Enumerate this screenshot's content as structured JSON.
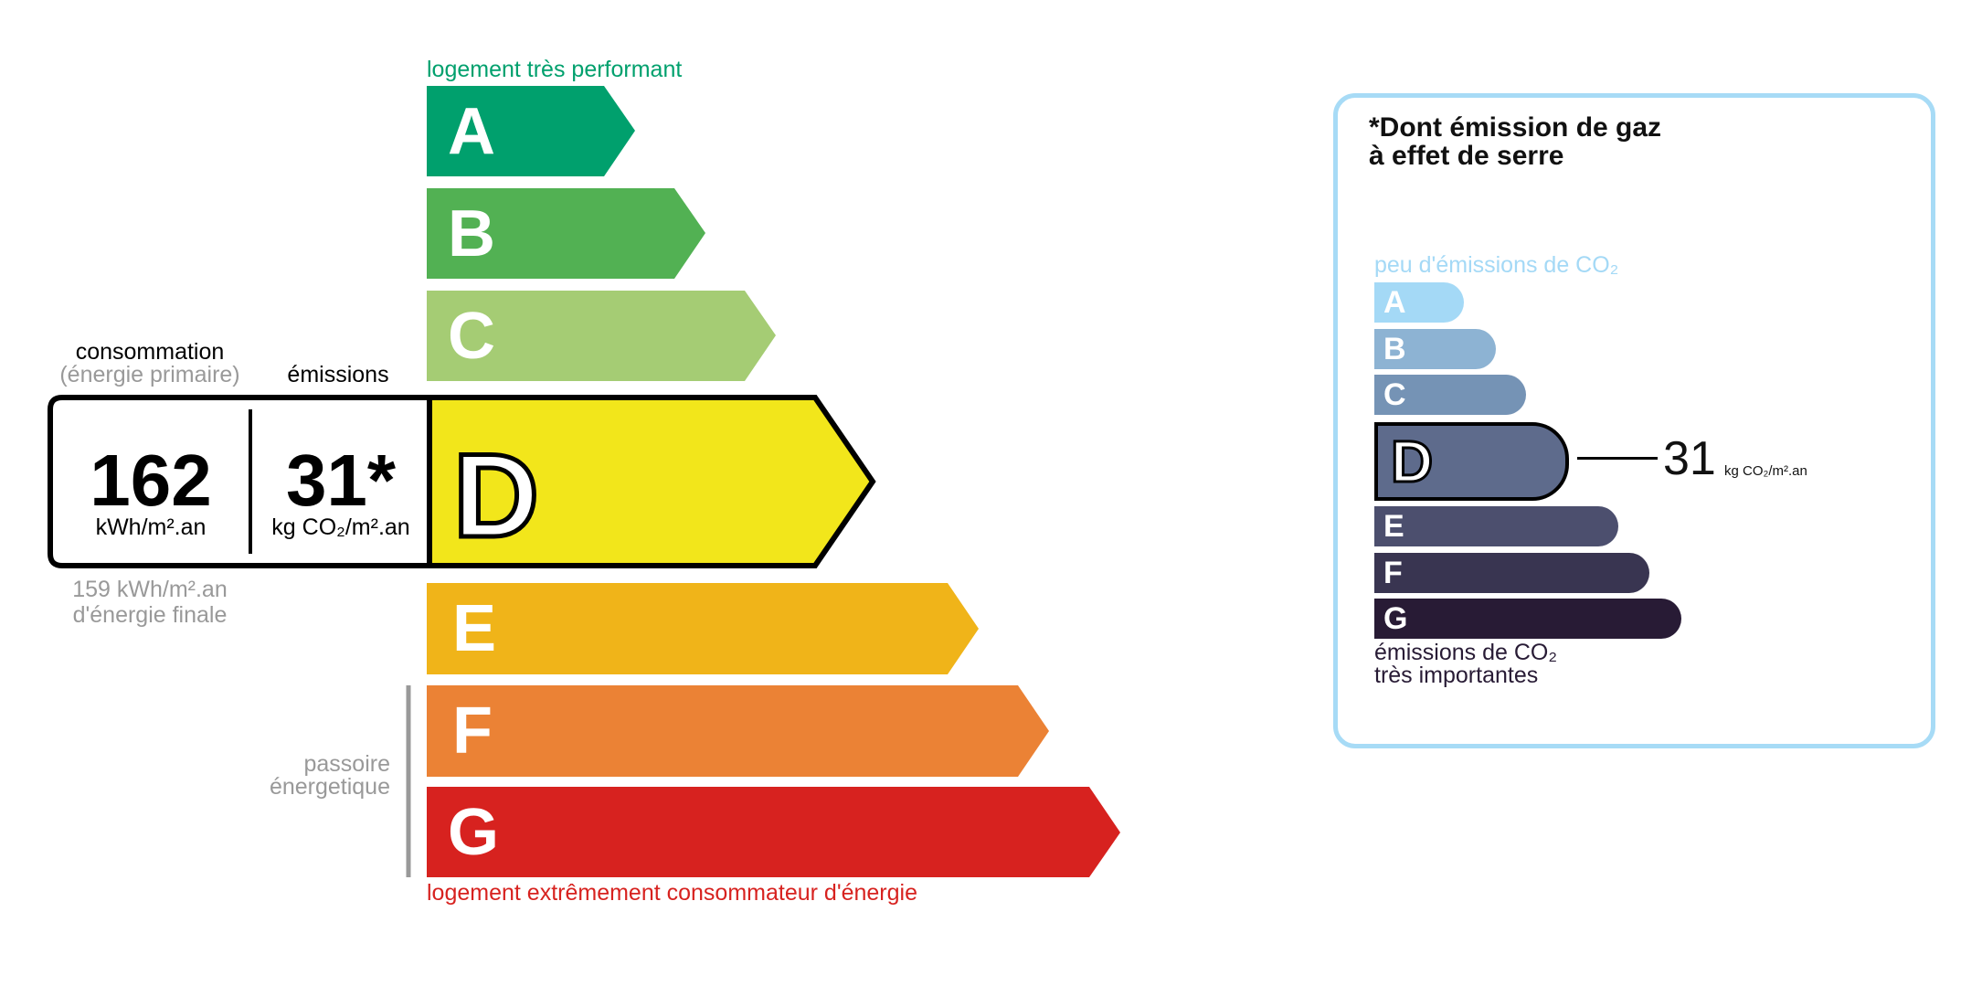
{
  "energy": {
    "top_label": "logement très performant",
    "bottom_label": "logement extrêmement consommateur d'énergie",
    "classes": [
      {
        "letter": "A",
        "color": "#00a06d"
      },
      {
        "letter": "B",
        "color": "#52b153"
      },
      {
        "letter": "C",
        "color": "#a5cc74"
      },
      {
        "letter": "D",
        "color": "#f2e61b"
      },
      {
        "letter": "E",
        "color": "#f0b419"
      },
      {
        "letter": "F",
        "color": "#eb8235"
      },
      {
        "letter": "G",
        "color": "#d7221f"
      }
    ],
    "current_class": "D",
    "consumption_label": "consommation",
    "consumption_sub": "(énergie primaire)",
    "emissions_label": "émissions",
    "consumption_value": "162",
    "consumption_unit": "kWh/m².an",
    "emissions_value": "31*",
    "emissions_unit": "kg CO₂/m².an",
    "final_energy_value": "159 kWh/m².an",
    "final_energy_label": "d'énergie finale",
    "passoire_line1": "passoire",
    "passoire_line2": "énergetique"
  },
  "ghg": {
    "title_line1": "*Dont émission de gaz",
    "title_line2": "à effet de serre",
    "top_label": "peu d'émissions de CO₂",
    "bottom_line1": "émissions de CO₂",
    "bottom_line2": "très importantes",
    "classes": [
      {
        "letter": "A",
        "color": "#a4d9f6"
      },
      {
        "letter": "B",
        "color": "#8db3d3"
      },
      {
        "letter": "C",
        "color": "#7593b5"
      },
      {
        "letter": "D",
        "color": "#5e6b8c"
      },
      {
        "letter": "E",
        "color": "#4c4f6e"
      },
      {
        "letter": "F",
        "color": "#393551"
      },
      {
        "letter": "G",
        "color": "#281b35"
      }
    ],
    "current_class": "D",
    "value": "31",
    "unit": "kg CO₂/m².an",
    "border_color": "#a7dbf6"
  }
}
